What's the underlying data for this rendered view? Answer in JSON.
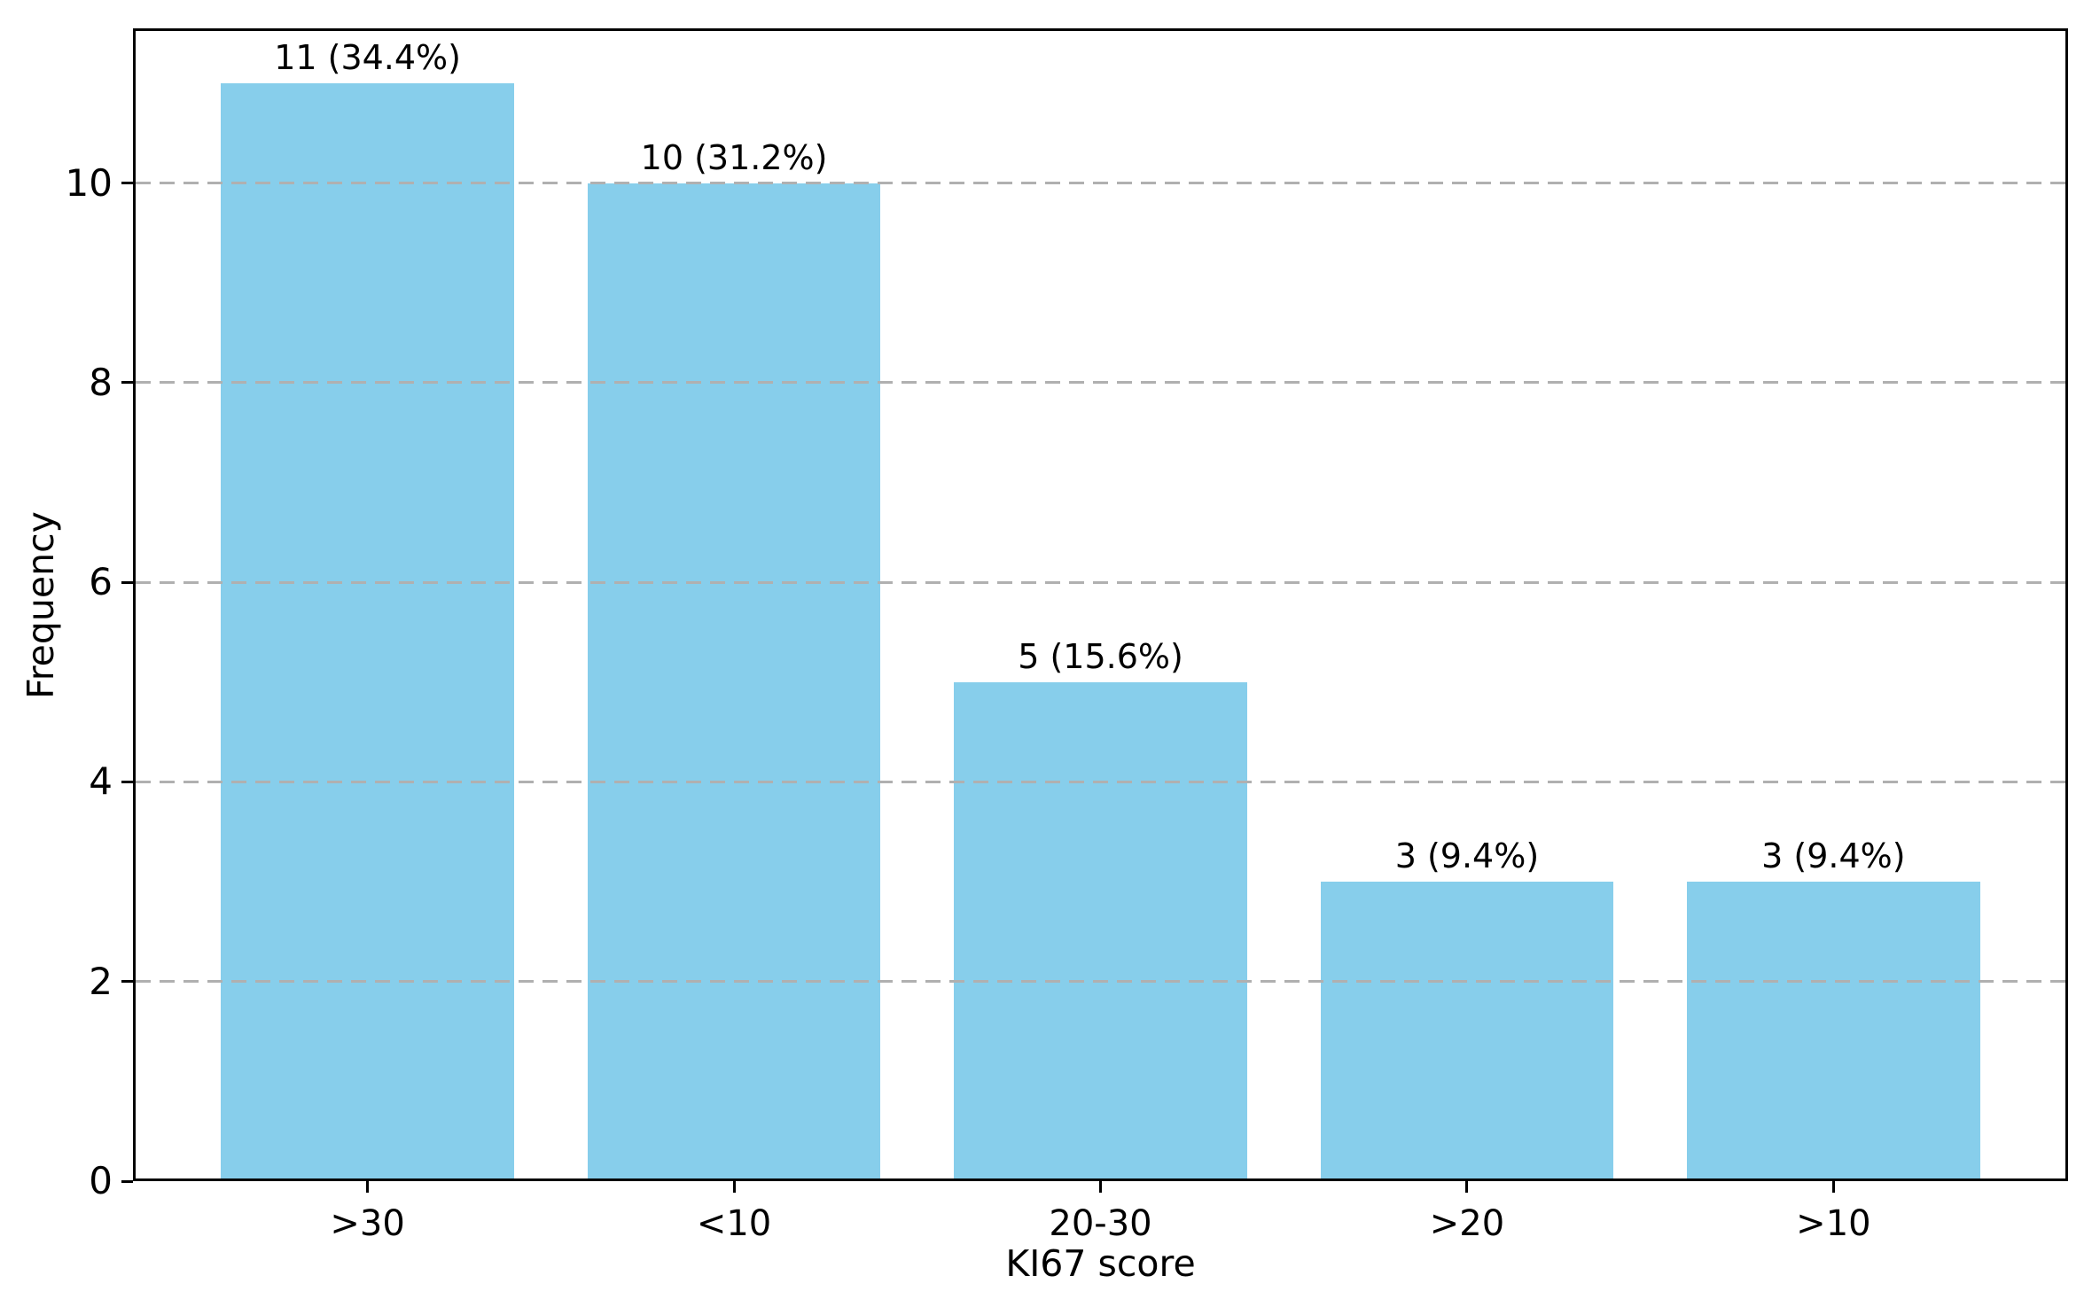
{
  "figure": {
    "background_color": "#ffffff",
    "frame_color": "#000000"
  },
  "chart_data": {
    "type": "bar",
    "title": "",
    "xlabel": "KI67 score",
    "ylabel": "Frequency",
    "categories": [
      ">30",
      "<10",
      "20-30",
      ">20",
      ">10"
    ],
    "values": [
      11,
      10,
      5,
      3,
      3
    ],
    "bar_labels": [
      "11 (34.4%)",
      "10 (31.2%)",
      "5 (15.6%)",
      "3 (9.4%)",
      "3 (9.4%)"
    ],
    "percentages": [
      34.4,
      31.2,
      15.6,
      9.4,
      9.4
    ],
    "yticks": [
      0,
      2,
      4,
      6,
      8,
      10
    ],
    "ylim": [
      0,
      11.55
    ],
    "grid": "horizontal dashed, drawn over bars",
    "legend": "none",
    "bar_color": "#87CEEB",
    "grid_color": "#b0b0b0",
    "axis_color": "#000000",
    "text_color": "#000000"
  }
}
